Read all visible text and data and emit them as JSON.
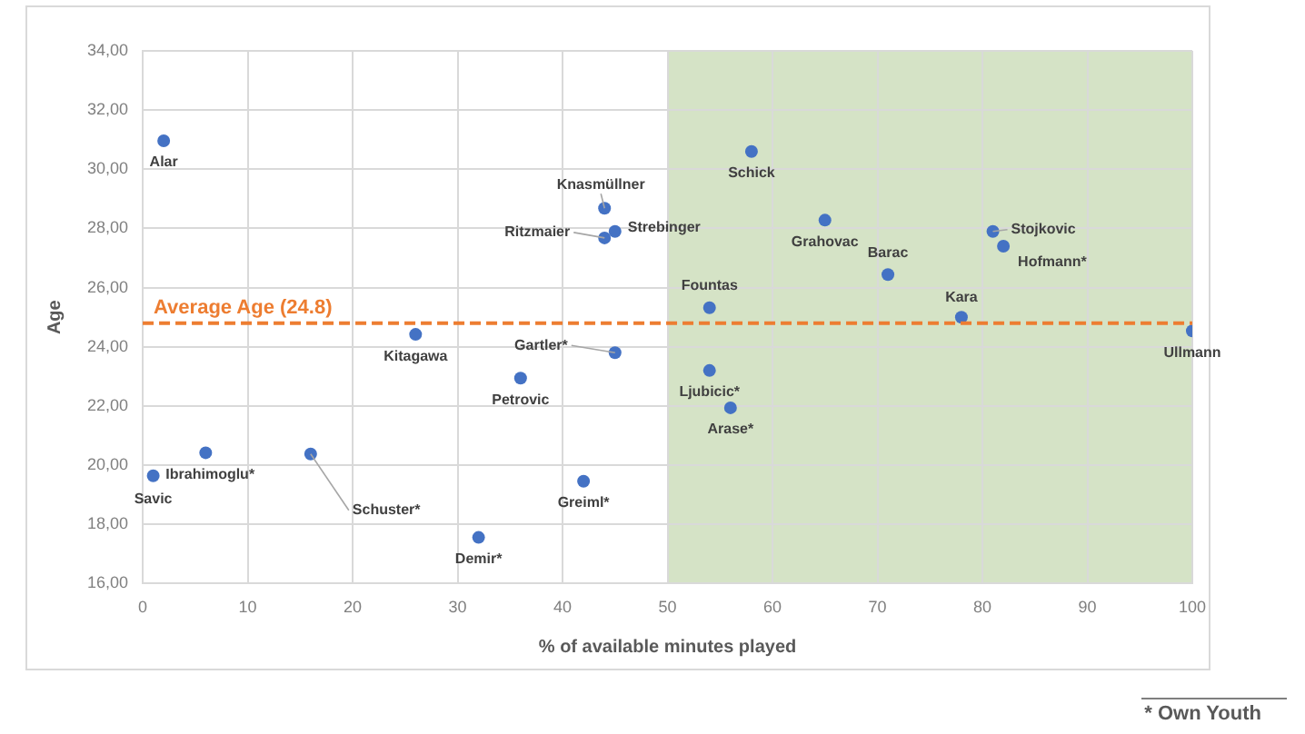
{
  "chart_data": {
    "type": "scatter",
    "xlabel": "% of available minutes played",
    "ylabel": "Age",
    "x": [
      2,
      1,
      6,
      16,
      32,
      42,
      36,
      26,
      45,
      44,
      45,
      44,
      58,
      65,
      71,
      54,
      54,
      56,
      78,
      81,
      82,
      100
    ],
    "series": [
      {
        "color": "#4472c4",
        "values": [
          30.96,
          19.64,
          20.42,
          20.38,
          17.56,
          19.46,
          22.94,
          24.42,
          23.8,
          27.68,
          27.9,
          28.68,
          30.6,
          28.28,
          26.44,
          25.32,
          23.2,
          21.94,
          25.0,
          27.9,
          27.4,
          24.54
        ]
      }
    ],
    "xlim": [
      0,
      100
    ],
    "xticks": [
      0,
      10,
      20,
      30,
      40,
      50,
      60,
      70,
      80,
      90,
      100
    ],
    "ylim": [
      16,
      34
    ],
    "yticks": [
      {
        "value": 16,
        "label": "16,00"
      },
      {
        "value": 18,
        "label": "18,00"
      },
      {
        "value": 20,
        "label": "20,00"
      },
      {
        "value": 22,
        "label": "22,00"
      },
      {
        "value": 24,
        "label": "24,00"
      },
      {
        "value": 26,
        "label": "26,00"
      },
      {
        "value": 28,
        "label": "28,00"
      },
      {
        "value": 30,
        "label": "30,00"
      },
      {
        "value": 32,
        "label": "32,00"
      },
      {
        "value": 34,
        "label": "34,00"
      }
    ],
    "grid": true,
    "legend": false,
    "marker": "circle",
    "ref_lines": [
      {
        "axis": "y",
        "value": 24.8,
        "label": "Average Age (24.8)",
        "color": "#ed7d31",
        "line_style": "dashed"
      }
    ],
    "bands": [
      {
        "axis": "x",
        "from": 50,
        "to": 100,
        "color": "#d5e3c6"
      }
    ],
    "annotations": [
      {
        "text": "Alar",
        "x": 2,
        "y": 30.96
      },
      {
        "text": "Savic",
        "x": 1,
        "y": 19.64
      },
      {
        "text": "Ibrahimoglu*",
        "x": 6,
        "y": 20.42
      },
      {
        "text": "Schuster*",
        "x": 16,
        "y": 20.38
      },
      {
        "text": "Demir*",
        "x": 32,
        "y": 17.56
      },
      {
        "text": "Greiml*",
        "x": 42,
        "y": 19.46
      },
      {
        "text": "Petrovic",
        "x": 36,
        "y": 22.94
      },
      {
        "text": "Kitagawa",
        "x": 26,
        "y": 24.42
      },
      {
        "text": "Gartler*",
        "x": 45,
        "y": 23.8
      },
      {
        "text": "Ritzmaier",
        "x": 44,
        "y": 27.68
      },
      {
        "text": "Strebinger",
        "x": 45,
        "y": 27.9
      },
      {
        "text": "Knasmüllner",
        "x": 44,
        "y": 28.68
      },
      {
        "text": "Schick",
        "x": 58,
        "y": 30.6
      },
      {
        "text": "Grahovac",
        "x": 65,
        "y": 28.28
      },
      {
        "text": "Barac",
        "x": 71,
        "y": 26.44
      },
      {
        "text": "Fountas",
        "x": 54,
        "y": 25.32
      },
      {
        "text": "Ljubicic*",
        "x": 54,
        "y": 23.2
      },
      {
        "text": "Arase*",
        "x": 56,
        "y": 21.94
      },
      {
        "text": "Kara",
        "x": 78,
        "y": 25.0
      },
      {
        "text": "Stojkovic",
        "x": 81,
        "y": 27.9
      },
      {
        "text": "Hofmann*",
        "x": 82,
        "y": 27.4
      },
      {
        "text": "Ullmann",
        "x": 100,
        "y": 24.54
      },
      "* Own Youth"
    ]
  }
}
